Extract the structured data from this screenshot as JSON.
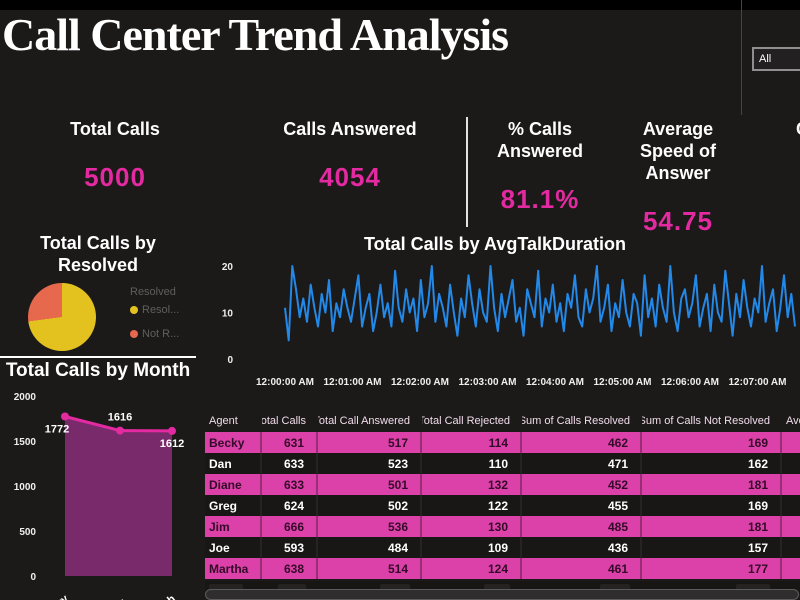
{
  "title": "Call Center Trend Analysis",
  "slicer": {
    "value": "All"
  },
  "kpis": [
    {
      "label": "Total Calls",
      "value": "5000"
    },
    {
      "label": "Calls Answered",
      "value": "4054"
    },
    {
      "label": "% Calls Answered",
      "value": "81.1%"
    },
    {
      "label": "Average Speed of Answer",
      "value": "54.75"
    },
    {
      "label": "Cal",
      "value": ""
    }
  ],
  "colors": {
    "accent_magenta": "#e32aa0",
    "row_pink": "#dc41a9",
    "line_blue": "#2289e8",
    "pie_yellow": "#e3c21f",
    "pie_orange": "#e6694e",
    "area_purple": "#7d2b6f"
  },
  "chart_data": [
    {
      "type": "pie",
      "title": "Total Calls by Resolved",
      "legend_title": "Resolved",
      "slices": [
        {
          "label": "Resol...",
          "pct": 72.9,
          "color": "#e3c21f"
        },
        {
          "label": "Not R...",
          "pct": 27.1,
          "color": "#e6694e"
        }
      ]
    },
    {
      "type": "line",
      "title": "Total Calls by AvgTalkDuration",
      "ylabel": "",
      "ylim": [
        0,
        20
      ],
      "yticks": [
        0,
        10,
        20
      ],
      "x_tick_labels": [
        "12:00:00 AM",
        "12:01:00 AM",
        "12:02:00 AM",
        "12:03:00 AM",
        "12:04:00 AM",
        "12:05:00 AM",
        "12:06:00 AM",
        "12:07:00 AM"
      ],
      "line_color": "#2289e8",
      "values": [
        11,
        4,
        20,
        15,
        9,
        13,
        8,
        16,
        11,
        7,
        14,
        10,
        17,
        6,
        12,
        9,
        15,
        11,
        8,
        13,
        18,
        7,
        11,
        14,
        6,
        10,
        16,
        9,
        12,
        7,
        19,
        11,
        8,
        15,
        10,
        13,
        6,
        17,
        9,
        12,
        20,
        8,
        14,
        11,
        7,
        16,
        10,
        5,
        13,
        9,
        18,
        12,
        7,
        15,
        10,
        8,
        20,
        11,
        6,
        14,
        9,
        13,
        17,
        8,
        11,
        5,
        15,
        12,
        9,
        19,
        7,
        13,
        10,
        16,
        8,
        12,
        6,
        14,
        11,
        18,
        9,
        7,
        15,
        10,
        13,
        20,
        8,
        11,
        16,
        6,
        12,
        9,
        17,
        10,
        7,
        14,
        12,
        5,
        18,
        9,
        13,
        7,
        16,
        11,
        8,
        20,
        10,
        6,
        13,
        15,
        9,
        12,
        18,
        7,
        11,
        14,
        6,
        16,
        10,
        8,
        19,
        12,
        5,
        14,
        9,
        17,
        11,
        7,
        13,
        10,
        20,
        8,
        12,
        15,
        6,
        11,
        18,
        9,
        14,
        7
      ]
    },
    {
      "type": "area",
      "title": "Total Calls by Month",
      "categories": [
        "January",
        "Febru...",
        "March"
      ],
      "values": [
        1772,
        1616,
        1612
      ],
      "data_labels": [
        "1772",
        "1616",
        "1612"
      ],
      "label_positions": [
        "below",
        "above",
        "below"
      ],
      "ylim": [
        0,
        2000
      ],
      "yticks": [
        0,
        500,
        1000,
        1500,
        2000
      ],
      "line_color": "#e32aa0",
      "fill_color": "#7d2b6f"
    },
    {
      "type": "table",
      "headers": [
        "Agent",
        "Total Calls",
        "Total Call Answered",
        "Total Call Rejected",
        "Sum of Calls Resolved",
        "Sum of Calls Not Resolved",
        "Ave"
      ],
      "rows": [
        [
          "Becky",
          "631",
          "517",
          "114",
          "462",
          "169",
          ""
        ],
        [
          "Dan",
          "633",
          "523",
          "110",
          "471",
          "162",
          ""
        ],
        [
          "Diane",
          "633",
          "501",
          "132",
          "452",
          "181",
          ""
        ],
        [
          "Greg",
          "624",
          "502",
          "122",
          "455",
          "169",
          ""
        ],
        [
          "Jim",
          "666",
          "536",
          "130",
          "485",
          "181",
          ""
        ],
        [
          "Joe",
          "593",
          "484",
          "109",
          "436",
          "157",
          ""
        ],
        [
          "Martha",
          "638",
          "514",
          "124",
          "461",
          "177",
          ""
        ]
      ]
    }
  ]
}
